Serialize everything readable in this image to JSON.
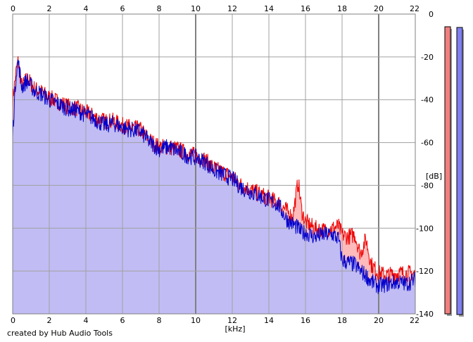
{
  "footer": {
    "credit": "created by Hub Audio Tools"
  },
  "colors": {
    "plot_bg": "#ffffff",
    "grid": "#a0a0a0",
    "grid_major": "#808080",
    "left_fill": "#ffbbbb",
    "left_line": "#ee0000",
    "right_fill": "#bcbcf8",
    "right_line": "#0000cc",
    "meter_left": "#f08080",
    "meter_right": "#8080f0"
  },
  "chart_data": {
    "type": "area",
    "title": "",
    "xlabel": "[kHz]",
    "ylabel": "[dB]",
    "xlim": [
      0,
      22
    ],
    "ylim": [
      -140,
      0
    ],
    "xticks": [
      "0",
      "2",
      "4",
      "6",
      "8",
      "10",
      "12",
      "14",
      "16",
      "18",
      "20",
      "22"
    ],
    "yticks": [
      "0",
      "-20",
      "-40",
      "-60",
      "-80",
      "-100",
      "-120",
      "-140"
    ],
    "grid": true,
    "series": [
      {
        "name": "",
        "channel": "left",
        "x": [
          0,
          0.2,
          0.3,
          0.5,
          0.8,
          1.2,
          1.5,
          2.0,
          2.5,
          3.0,
          3.5,
          4.0,
          4.5,
          5.0,
          5.5,
          6.0,
          6.5,
          7.0,
          7.5,
          8.0,
          8.5,
          9.0,
          9.5,
          10.0,
          10.5,
          11.0,
          11.5,
          12.0,
          12.5,
          13.0,
          13.5,
          14.0,
          14.5,
          15.0,
          15.3,
          15.6,
          15.8,
          16.0,
          16.5,
          17.0,
          17.5,
          17.8,
          18.0,
          18.3,
          18.7,
          19.0,
          19.3,
          19.6,
          20.0,
          20.5,
          21.0,
          21.5,
          22.0
        ],
        "y": [
          -40,
          -26,
          -22,
          -34,
          -30,
          -35,
          -36,
          -39,
          -41,
          -43,
          -44,
          -46,
          -48,
          -50,
          -50,
          -52,
          -53,
          -54,
          -59,
          -62,
          -62,
          -63,
          -65,
          -66,
          -68,
          -72,
          -74,
          -76,
          -80,
          -82,
          -84,
          -86,
          -88,
          -92,
          -95,
          -78,
          -92,
          -97,
          -100,
          -101,
          -100,
          -99,
          -103,
          -104,
          -103,
          -112,
          -105,
          -117,
          -121,
          -122,
          -121,
          -121,
          -121
        ]
      },
      {
        "name": "",
        "channel": "right",
        "x": [
          0,
          0.2,
          0.3,
          0.5,
          0.8,
          1.2,
          1.5,
          2.0,
          2.5,
          3.0,
          3.5,
          4.0,
          4.5,
          5.0,
          5.5,
          6.0,
          6.5,
          7.0,
          7.5,
          8.0,
          8.5,
          9.0,
          9.5,
          10.0,
          10.5,
          11.0,
          11.5,
          12.0,
          12.5,
          13.0,
          13.5,
          14.0,
          14.5,
          15.0,
          15.3,
          15.6,
          15.8,
          16.0,
          16.5,
          17.0,
          17.5,
          17.8,
          18.0,
          18.3,
          18.7,
          19.0,
          19.3,
          19.6,
          20.0,
          20.5,
          21.0,
          21.5,
          22.0
        ],
        "y": [
          -56,
          -26,
          -22,
          -34,
          -31,
          -36,
          -37,
          -40,
          -42,
          -44,
          -45,
          -47,
          -49,
          -52,
          -51,
          -53,
          -54,
          -55,
          -60,
          -63,
          -62,
          -64,
          -66,
          -67,
          -69,
          -73,
          -75,
          -77,
          -81,
          -83,
          -85,
          -87,
          -89,
          -96,
          -98,
          -100,
          -102,
          -102,
          -104,
          -103,
          -103,
          -105,
          -115,
          -116,
          -117,
          -120,
          -122,
          -125,
          -127,
          -126,
          -125,
          -126,
          -124
        ]
      }
    ]
  }
}
